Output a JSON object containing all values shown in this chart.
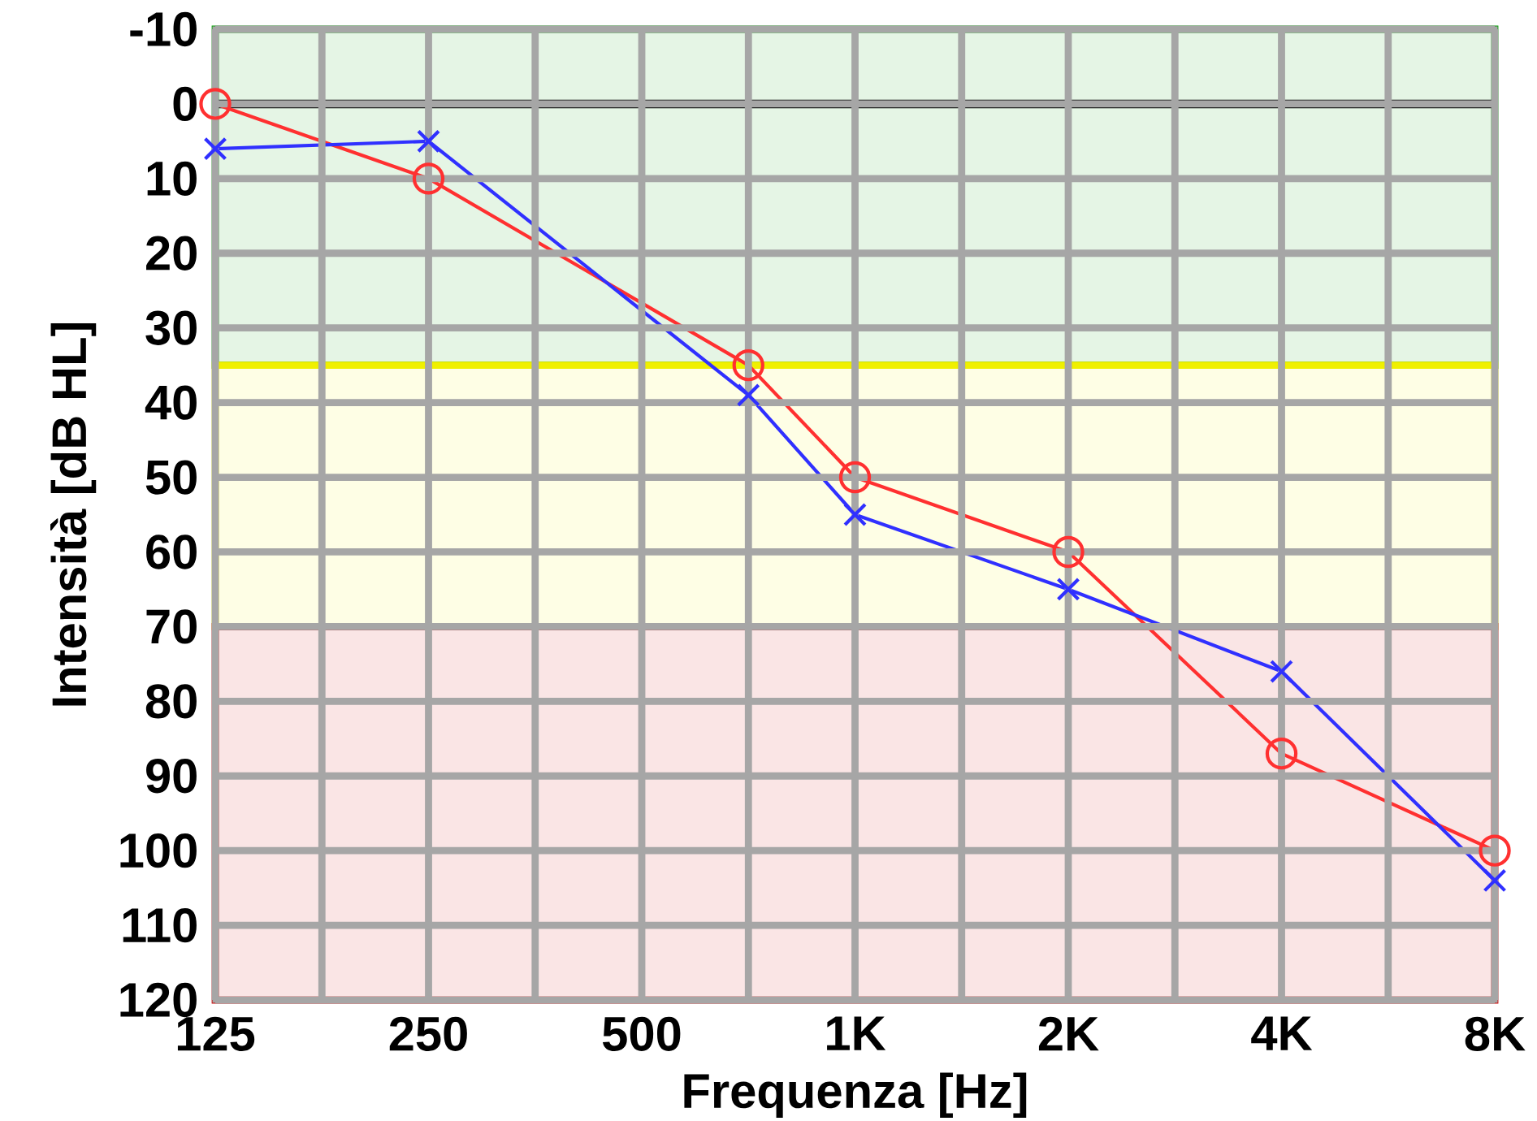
{
  "chart_data": {
    "type": "line",
    "xlabel": "Frequenza [Hz]",
    "ylabel": "Intensità [dB HL]",
    "categories": [
      "125",
      null,
      "250",
      null,
      "500",
      null,
      "1K",
      null,
      "2K",
      null,
      "4K",
      null,
      "8K"
    ],
    "ylim": [
      120,
      -10
    ],
    "yticks": [
      {
        "value": -10,
        "label": "-10"
      },
      0,
      10,
      20,
      30,
      40,
      50,
      60,
      70,
      80,
      90,
      100,
      110,
      120
    ],
    "grid": true,
    "series": [
      {
        "color": "#ff3030",
        "marker": "circle",
        "values": [
          0,
          null,
          10,
          null,
          null,
          35,
          50,
          null,
          60,
          null,
          87,
          null,
          100
        ]
      },
      {
        "color": "#3030ff",
        "marker": "cross",
        "values": [
          6,
          null,
          5,
          null,
          null,
          39,
          55,
          null,
          65,
          null,
          76,
          null,
          104
        ]
      }
    ],
    "ref_lines": [
      {
        "axis": "y",
        "value": 0,
        "color": "#000000"
      }
    ],
    "bands": [
      {
        "axis": "y",
        "from": -10,
        "to": 35,
        "color": "#00a000"
      },
      {
        "axis": "y",
        "from": 35,
        "to": 70,
        "color": "#f0f000"
      },
      {
        "axis": "y",
        "from": 70,
        "to": 120,
        "color": "#cc0000"
      }
    ]
  }
}
